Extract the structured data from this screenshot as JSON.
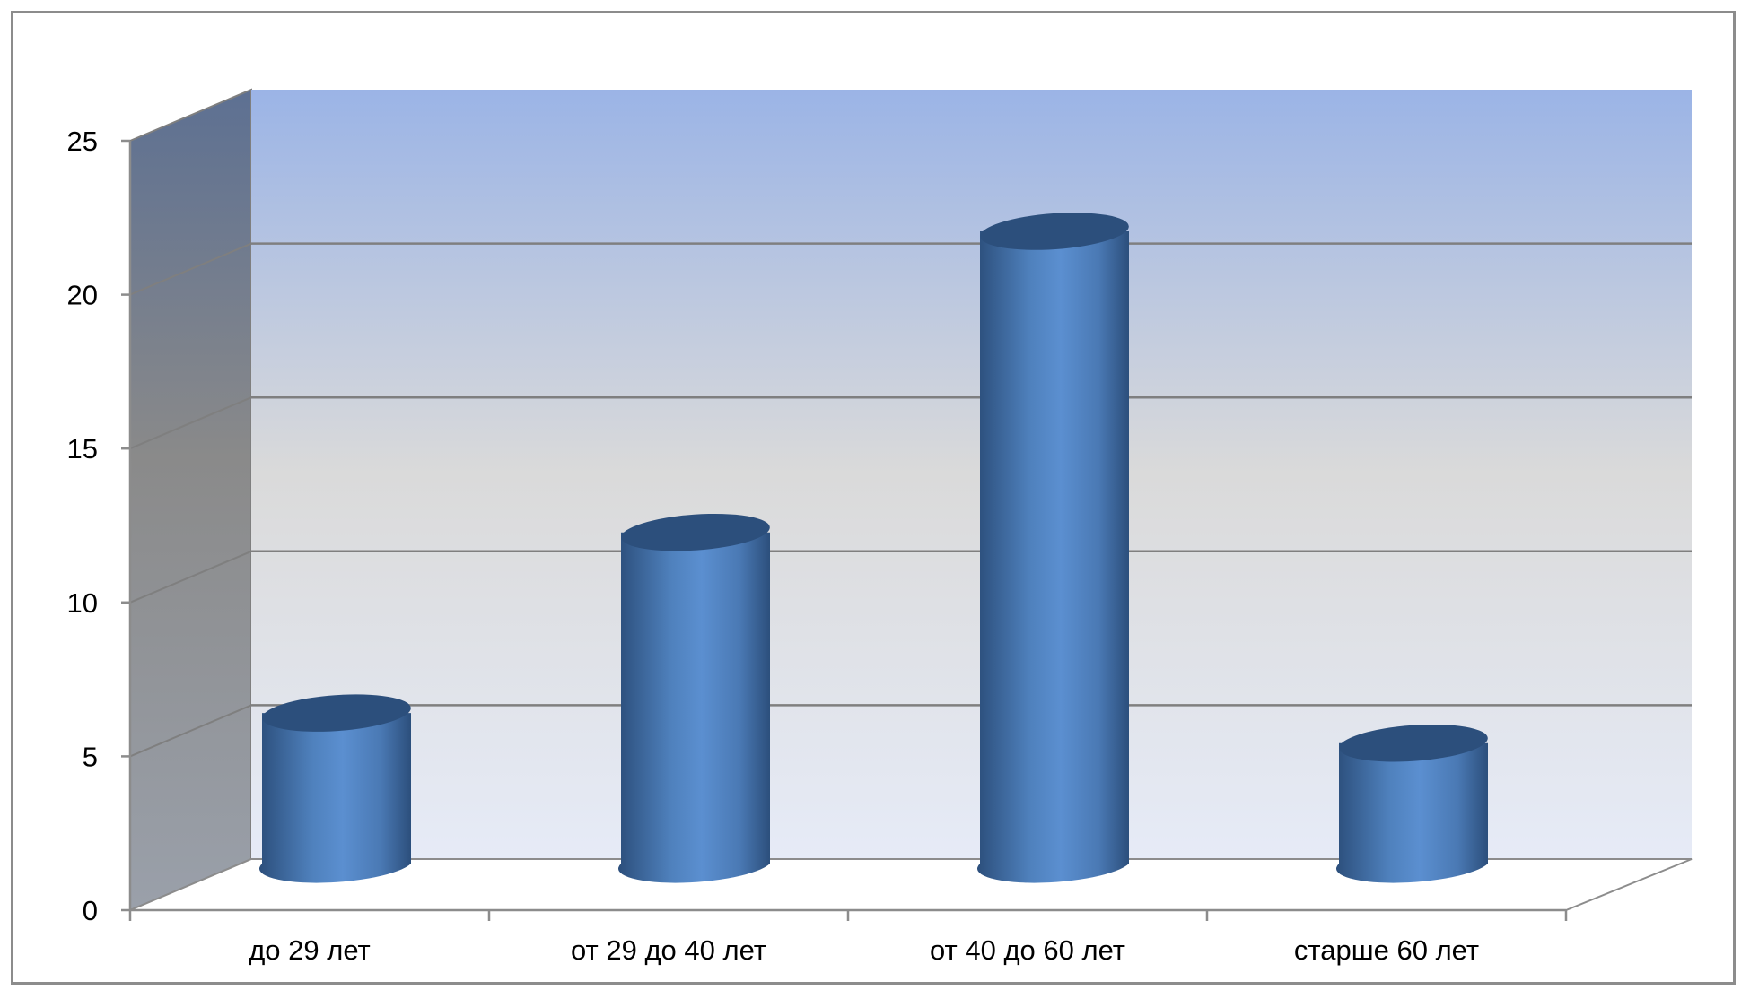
{
  "chart_data": {
    "type": "bar",
    "style": "3d-cylinder",
    "title": "",
    "xlabel": "",
    "ylabel": "",
    "categories": [
      "до 29 лет",
      "от 29 до 40 лет",
      "от 40 до 60 лет",
      "старше 60 лет"
    ],
    "series": [
      {
        "values": [
          5,
          11,
          21,
          4
        ]
      }
    ],
    "ylim": [
      0,
      25
    ],
    "yticks": [
      "0",
      "5",
      "10",
      "15",
      "20",
      "25"
    ],
    "grid": true,
    "legend": "none",
    "colors": {
      "bar": "#4f81bd",
      "bar_dark": "#2c4f7c",
      "bar_light": "#6d9ad6",
      "wall_top": "#9bb4e6",
      "wall_mid": "#dadada",
      "wall_bottom": "#e6ebf7",
      "side_wall": "#8a8f99",
      "grid_line": "#7f7f7f",
      "axis_line": "#8c8c8c"
    }
  }
}
